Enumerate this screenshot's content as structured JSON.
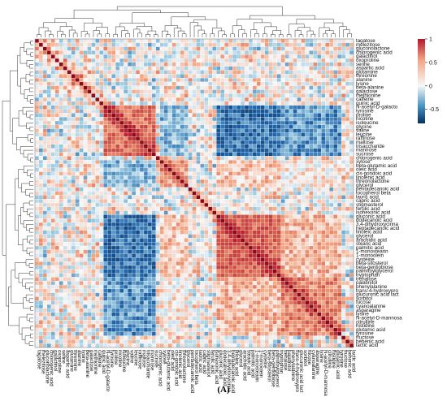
{
  "caption": "(A)",
  "chart_data": {
    "type": "heatmap",
    "title": "",
    "clustered": true,
    "row_dendrogram": "left",
    "col_dendrogram": "top",
    "labels": [
      "tagatose",
      "melezitose",
      "gluconolactone",
      "chlorogenic acid",
      "galactinol",
      "oxoproline",
      "serine",
      "aspartic acid",
      "glutamine",
      "threonine",
      "alanine",
      "lysine",
      "beta-alanine",
      "galactose",
      "methionine",
      "caffeine",
      "quinic acid",
      "N-acetyl-D-galacto",
      "tyrosine",
      "proline",
      "nicotine",
      "isoleucine",
      "glycine",
      "valine",
      "leucine",
      "raffinose",
      "maltose",
      "trisaccharide",
      "mannose",
      "sucrose",
      "chlorogenic acid",
      "xylose",
      "beta-glutamic acid",
      "oleic acid",
      "cis-gondoic acid",
      "linolenic acid",
      "threonolactone",
      "glycerol",
      "pentadecanoic acid",
      "tocopherol beta",
      "lauric acid",
      "capric acid",
      "stigmasterol",
      "ferulic acid",
      "isohexonic acid",
      "gluconic acid",
      "dodecanoic acid",
      "3,4-dihydroxycinna",
      "heptadecanoic acid",
      "linoleic acid",
      "glycerol",
      "arachidic acid",
      "stearic acid",
      "palmitic acid",
      "1-monostearin",
      "1-monoolein",
      "cysteine",
      "beta-sitosterol",
      "beta-gentiobiose",
      "palmitoylglycerol",
      "tryptophan",
      "trehalose",
      "palatinitol",
      "phenylalanine",
      "trans-4-hydroxypro",
      "glucuronic acid lact",
      "sorbitol",
      "fucose",
      "cyanoalanine",
      "asparagine",
      "lysine",
      "N-acetyl-D-mannosa",
      "citrulline",
      "histidine",
      "glutamic acid",
      "tyrosine",
      "fructose",
      "behenic acid",
      "lactic acid"
    ],
    "value_range": [
      -0.8,
      1
    ],
    "colorbar": {
      "ticks": [
        1,
        0.5,
        0,
        -0.5
      ],
      "tick_labels": [
        "1",
        "0.5",
        "0",
        "-0.5"
      ]
    },
    "colors": {
      "high": "#b2182b",
      "mid": "#f7f7f7",
      "low": "#053061",
      "diagonal": "#8b0a1a"
    },
    "block_correlations": {
      "amino_acids_block": 0.55,
      "fatty_acids_block": 0.6,
      "amino_vs_fatty": -0.6,
      "sugar_tail_block": 0.45,
      "amino_vs_sugar_tail": -0.45,
      "background": 0.05
    }
  }
}
